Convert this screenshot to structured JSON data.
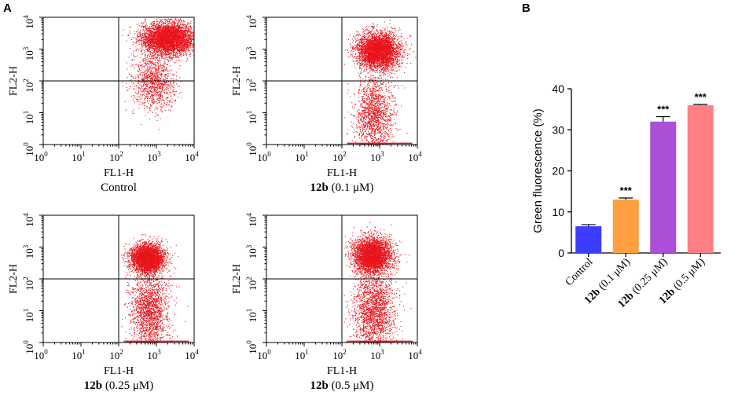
{
  "panel_labels": {
    "a": "A",
    "b": "B"
  },
  "flow_common": {
    "xlabel": "FL1-H",
    "ylabel": "FL2-H",
    "axis_base": "10",
    "tick_exponents": [
      "0",
      "1",
      "2",
      "3",
      "4"
    ],
    "dot_color": "#e8141c"
  },
  "chart_data": [
    {
      "type": "scatter",
      "title": "Control",
      "title_bold": "",
      "xlabel": "FL1-H",
      "ylabel": "FL2-H",
      "xscale": "log",
      "yscale": "log",
      "xlim": [
        1,
        10000
      ],
      "ylim": [
        1,
        10000
      ],
      "quadrant_gates": {
        "x": 100,
        "y": 100
      },
      "populations": [
        {
          "name": "main",
          "center_log": [
            3.3,
            3.35
          ],
          "spread_log": [
            0.35,
            0.25
          ],
          "count": 4200
        },
        {
          "name": "tail",
          "center_log": [
            2.9,
            2.0
          ],
          "spread_log": [
            0.28,
            0.45
          ],
          "count": 1100
        }
      ]
    },
    {
      "type": "scatter",
      "title": "(0.1 μM)",
      "title_bold": "12b",
      "xlabel": "FL1-H",
      "ylabel": "FL2-H",
      "xscale": "log",
      "yscale": "log",
      "xlim": [
        1,
        10000
      ],
      "ylim": [
        1,
        10000
      ],
      "quadrant_gates": {
        "x": 100,
        "y": 100
      },
      "populations": [
        {
          "name": "main",
          "center_log": [
            2.95,
            2.95
          ],
          "spread_log": [
            0.28,
            0.28
          ],
          "count": 4000
        },
        {
          "name": "tail",
          "center_log": [
            2.85,
            1.0
          ],
          "spread_log": [
            0.25,
            0.6
          ],
          "count": 1500
        }
      ]
    },
    {
      "type": "scatter",
      "title": "(0.25 μM)",
      "title_bold": "12b",
      "xlabel": "FL1-H",
      "ylabel": "FL2-H",
      "xscale": "log",
      "yscale": "log",
      "xlim": [
        1,
        10000
      ],
      "ylim": [
        1,
        10000
      ],
      "quadrant_gates": {
        "x": 100,
        "y": 100
      },
      "populations": [
        {
          "name": "main",
          "center_log": [
            2.75,
            2.65
          ],
          "spread_log": [
            0.22,
            0.22
          ],
          "count": 3600
        },
        {
          "name": "tail",
          "center_log": [
            2.8,
            1.0
          ],
          "spread_log": [
            0.25,
            0.65
          ],
          "count": 1800
        }
      ]
    },
    {
      "type": "scatter",
      "title": "(0.5 μM)",
      "title_bold": "12b",
      "xlabel": "FL1-H",
      "ylabel": "FL2-H",
      "xscale": "log",
      "yscale": "log",
      "xlim": [
        1,
        10000
      ],
      "ylim": [
        1,
        10000
      ],
      "quadrant_gates": {
        "x": 100,
        "y": 100
      },
      "populations": [
        {
          "name": "main",
          "center_log": [
            2.8,
            2.75
          ],
          "spread_log": [
            0.25,
            0.28
          ],
          "count": 3800
        },
        {
          "name": "tail",
          "center_log": [
            2.85,
            1.0
          ],
          "spread_log": [
            0.28,
            0.65
          ],
          "count": 2000
        }
      ]
    },
    {
      "type": "bar",
      "title": "",
      "ylabel": "Green fluorescence (%)",
      "ylim": [
        0,
        40
      ],
      "yticks": [
        0,
        10,
        20,
        30,
        40
      ],
      "categories": [
        {
          "bold": "",
          "text": "Control"
        },
        {
          "bold": "12b",
          "text": " (0.1 μM)"
        },
        {
          "bold": "12b",
          "text": " (0.25 μM)"
        },
        {
          "bold": "12b",
          "text": " (0.5 μM)"
        }
      ],
      "values": [
        6.5,
        13.0,
        32.0,
        36.0
      ],
      "errors": [
        0.4,
        0.4,
        1.2,
        0.2
      ],
      "significance": [
        "",
        "***",
        "***",
        "***"
      ],
      "colors": [
        "#3d3dff",
        "#ff9f40",
        "#ab4fd6",
        "#ff7f84"
      ]
    }
  ]
}
